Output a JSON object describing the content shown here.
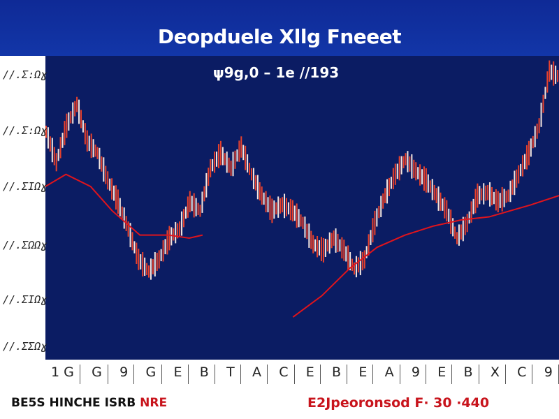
{
  "chart_data": {
    "type": "line",
    "title": "Deopduele Xllg Fneeet",
    "subtitle": "ψ9g,0 – 1e //193",
    "ytick_labels": [
      "//.Σ:Ωɣ",
      "//.Σ:Ωɣ",
      "//.ΣIΩɣ",
      "//.ΣΩΩɣ",
      "//.ΣIΩɣ",
      "//.ΣΣΩɣ"
    ],
    "xtick_labels": [
      "1 G",
      "G",
      "9",
      "G",
      "E",
      "B",
      "T",
      "A",
      "C",
      "E",
      "B",
      "E",
      "A",
      "9",
      "E",
      "B",
      "X",
      "C",
      "9"
    ],
    "ylim": [
      0,
      100
    ],
    "xlim": [
      0,
      50
    ],
    "grid": false,
    "series": [
      {
        "role": "price",
        "color": "#e8412c",
        "x": [
          0,
          1,
          2,
          3,
          4,
          5,
          6,
          7,
          8,
          9,
          10,
          11,
          12,
          13,
          14,
          15,
          16,
          17,
          18,
          19,
          20,
          21,
          22,
          23,
          24,
          25,
          26,
          27,
          28,
          29,
          30,
          31,
          32,
          33,
          34,
          35,
          36,
          37,
          38,
          39,
          40,
          41,
          42,
          43,
          44,
          45,
          46,
          47,
          48,
          49,
          50
        ],
        "values": [
          75,
          65,
          77,
          84,
          72,
          68,
          59,
          52,
          43,
          33,
          29,
          33,
          40,
          43,
          52,
          49,
          63,
          68,
          63,
          70,
          61,
          54,
          49,
          51,
          49,
          45,
          38,
          36,
          40,
          36,
          30,
          33,
          45,
          54,
          61,
          66,
          62,
          59,
          54,
          49,
          40,
          45,
          54,
          55,
          52,
          54,
          61,
          68,
          77,
          95,
          93
        ]
      },
      {
        "role": "moving-average",
        "color": "#e0141c",
        "x": [
          0,
          2,
          4.4,
          6.5,
          9.2,
          12,
          14,
          15.3
        ],
        "values": [
          57,
          61,
          57,
          49,
          41,
          41,
          40,
          41
        ]
      },
      {
        "role": "moving-average",
        "color": "#e0141c",
        "x": [
          24.1,
          26.9,
          29.6,
          32.3,
          35,
          37.8,
          40.5,
          43.2,
          47.3,
          50
        ],
        "values": [
          14,
          21,
          30,
          37,
          41,
          44,
          46,
          47,
          51,
          54
        ]
      }
    ]
  },
  "footer": {
    "left": "BE5S HINCHE ISRB",
    "left_red": "NRE",
    "right": "E2Jpeoronsod F· 30 ·440"
  }
}
